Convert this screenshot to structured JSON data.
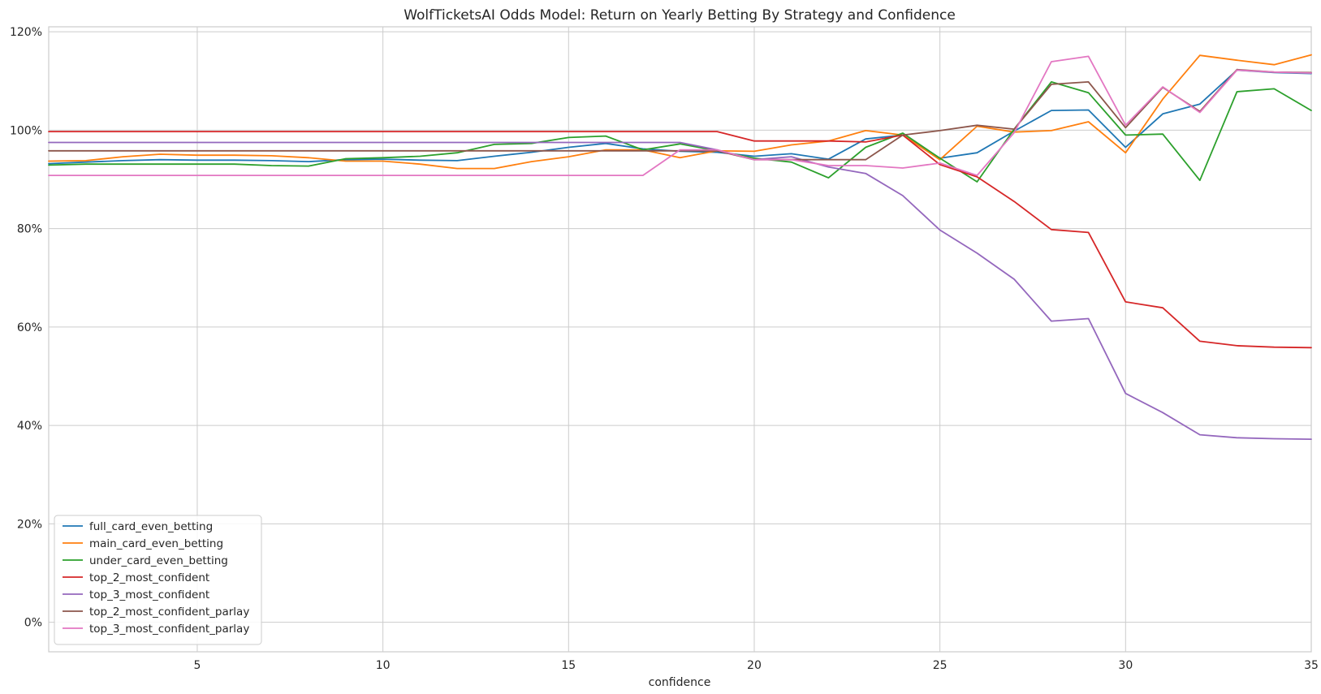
{
  "chart_data": {
    "type": "line",
    "title": "WolfTicketsAI Odds Model: Return on Yearly Betting By Strategy and Confidence",
    "xlabel": "confidence",
    "ylabel": "",
    "xlim": [
      1,
      35
    ],
    "ylim": [
      -0.06,
      1.21
    ],
    "x_ticks": [
      5,
      10,
      15,
      20,
      25,
      30,
      35
    ],
    "x_tick_labels": [
      "5",
      "10",
      "15",
      "20",
      "25",
      "30",
      "35"
    ],
    "y_ticks": [
      0,
      0.2,
      0.4,
      0.6,
      0.8,
      1.0,
      1.2
    ],
    "y_tick_labels": [
      "0%",
      "20%",
      "40%",
      "60%",
      "80%",
      "100%",
      "120%"
    ],
    "grid": true,
    "legend_position": "lower-left",
    "x": [
      1,
      2,
      3,
      4,
      5,
      6,
      7,
      8,
      9,
      10,
      11,
      12,
      13,
      14,
      15,
      16,
      17,
      18,
      19,
      20,
      21,
      22,
      23,
      24,
      25,
      26,
      27,
      28,
      29,
      30,
      31,
      32,
      33,
      34,
      35
    ],
    "series": [
      {
        "name": "full_card_even_betting",
        "color": "#1f77b4",
        "values": [
          0.932,
          0.935,
          0.938,
          0.94,
          0.939,
          0.939,
          0.938,
          0.936,
          0.94,
          0.941,
          0.939,
          0.938,
          0.947,
          0.955,
          0.965,
          0.973,
          0.962,
          0.957,
          0.955,
          0.947,
          0.952,
          0.941,
          0.982,
          0.99,
          0.943,
          0.954,
          0.998,
          1.04,
          1.041,
          0.965,
          1.033,
          1.053,
          1.122,
          1.117,
          1.115
        ]
      },
      {
        "name": "main_card_even_betting",
        "color": "#ff7f0e",
        "values": [
          0.937,
          0.938,
          0.946,
          0.951,
          0.949,
          0.949,
          0.948,
          0.944,
          0.937,
          0.937,
          0.931,
          0.922,
          0.922,
          0.936,
          0.946,
          0.96,
          0.96,
          0.944,
          0.958,
          0.957,
          0.97,
          0.978,
          0.999,
          0.99,
          0.94,
          1.008,
          0.996,
          0.999,
          1.017,
          0.954,
          1.063,
          1.152,
          1.142,
          1.133,
          1.153
        ]
      },
      {
        "name": "under_card_even_betting",
        "color": "#2ca02c",
        "values": [
          0.929,
          0.931,
          0.931,
          0.931,
          0.931,
          0.931,
          0.928,
          0.927,
          0.942,
          0.944,
          0.947,
          0.954,
          0.971,
          0.973,
          0.985,
          0.988,
          0.96,
          0.972,
          0.958,
          0.943,
          0.935,
          0.903,
          0.965,
          0.994,
          0.943,
          0.895,
          1.002,
          1.098,
          1.076,
          0.99,
          0.992,
          0.898,
          1.078,
          1.084,
          1.04
        ]
      },
      {
        "name": "top_2_most_confident",
        "color": "#d62728",
        "values": [
          0.997,
          0.997,
          0.997,
          0.997,
          0.997,
          0.997,
          0.997,
          0.997,
          0.997,
          0.997,
          0.997,
          0.997,
          0.997,
          0.997,
          0.997,
          0.997,
          0.997,
          0.997,
          0.997,
          0.978,
          0.978,
          0.978,
          0.976,
          0.99,
          0.93,
          0.905,
          0.855,
          0.798,
          0.792,
          0.651,
          0.639,
          0.571,
          0.562,
          0.559,
          0.558
        ]
      },
      {
        "name": "top_3_most_confident",
        "color": "#9467bd",
        "values": [
          0.975,
          0.975,
          0.975,
          0.975,
          0.975,
          0.975,
          0.975,
          0.975,
          0.975,
          0.975,
          0.975,
          0.975,
          0.975,
          0.975,
          0.975,
          0.975,
          0.975,
          0.975,
          0.96,
          0.94,
          0.946,
          0.925,
          0.912,
          0.867,
          0.797,
          0.75,
          0.697,
          0.612,
          0.617,
          0.465,
          0.426,
          0.381,
          0.375,
          0.373,
          0.372
        ]
      },
      {
        "name": "top_2_most_confident_parlay",
        "color": "#8c564b",
        "values": [
          0.958,
          0.958,
          0.958,
          0.958,
          0.958,
          0.958,
          0.958,
          0.958,
          0.958,
          0.958,
          0.958,
          0.958,
          0.958,
          0.958,
          0.958,
          0.958,
          0.958,
          0.958,
          0.958,
          0.94,
          0.94,
          0.94,
          0.94,
          0.99,
          0.999,
          1.01,
          1.002,
          1.093,
          1.098,
          1.005,
          1.087,
          1.038,
          1.123,
          1.118,
          1.117
        ]
      },
      {
        "name": "top_3_most_confident_parlay",
        "color": "#e377c2",
        "values": [
          0.908,
          0.908,
          0.908,
          0.908,
          0.908,
          0.908,
          0.908,
          0.908,
          0.908,
          0.908,
          0.908,
          0.908,
          0.908,
          0.908,
          0.908,
          0.908,
          0.908,
          0.96,
          0.96,
          0.94,
          0.94,
          0.928,
          0.928,
          0.923,
          0.933,
          0.908,
          0.995,
          1.139,
          1.15,
          1.01,
          1.088,
          1.036,
          1.122,
          1.118,
          1.116
        ]
      }
    ]
  }
}
